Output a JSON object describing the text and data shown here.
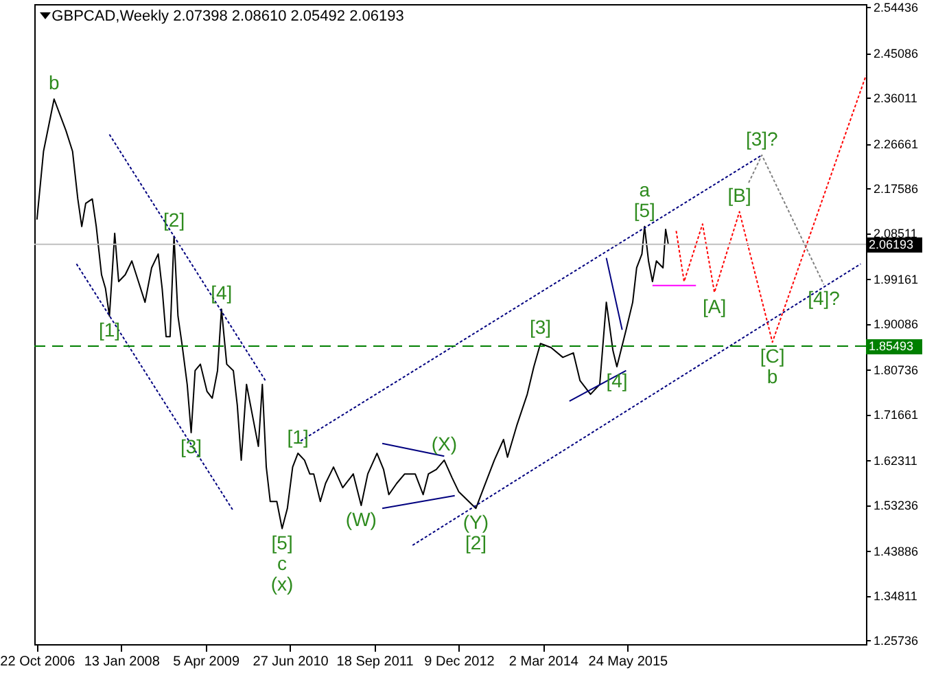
{
  "chart_data": {
    "type": "line",
    "title": "GBPCAD,Weekly  2.07398 2.08610 2.05492 2.06193",
    "xlim": [
      "2006-10-08",
      "2018-11-11"
    ],
    "xticks": [
      {
        "value": "2006-10-22",
        "label": "22 Oct 2006"
      },
      {
        "value": "2008-01-13",
        "label": "13 Jan 2008"
      },
      {
        "value": "2009-04-05",
        "label": "5 Apr 2009"
      },
      {
        "value": "2010-06-27",
        "label": "27 Jun 2010"
      },
      {
        "value": "2011-09-18",
        "label": "18 Sep 2011"
      },
      {
        "value": "2012-12-09",
        "label": "9 Dec 2012"
      },
      {
        "value": "2014-03-02",
        "label": "2 Mar 2014"
      },
      {
        "value": "2015-05-24",
        "label": "24 May 2015"
      }
    ],
    "ylim": [
      1.249,
      2.55
    ],
    "yticks": [
      {
        "value": 1.25736,
        "label": "1.25736"
      },
      {
        "value": 1.34811,
        "label": "1.34811"
      },
      {
        "value": 1.43886,
        "label": "1.43886"
      },
      {
        "value": 1.53236,
        "label": "1.53236"
      },
      {
        "value": 1.62311,
        "label": "1.62311"
      },
      {
        "value": 1.71661,
        "label": "1.71661"
      },
      {
        "value": 1.80736,
        "label": "1.80736"
      },
      {
        "value": 1.90086,
        "label": "1.90086"
      },
      {
        "value": 1.99161,
        "label": "1.99161"
      },
      {
        "value": 2.08511,
        "label": "2.08511"
      },
      {
        "value": 2.17586,
        "label": "2.17586"
      },
      {
        "value": 2.26661,
        "label": "2.26661"
      },
      {
        "value": 2.36011,
        "label": "2.36011"
      },
      {
        "value": 2.45086,
        "label": "2.45086"
      },
      {
        "value": 2.54436,
        "label": "2.54436"
      }
    ],
    "grid": false,
    "series": [
      {
        "color": "#000000",
        "x": [
          "2006-10-22",
          "2006-11-26",
          "2007-01-21",
          "2007-03-25",
          "2007-04-29",
          "2007-05-27",
          "2007-06-17",
          "2007-07-08",
          "2007-08-12",
          "2007-09-02",
          "2007-09-30",
          "2007-10-21",
          "2007-11-11",
          "2007-12-09",
          "2007-12-30",
          "2008-02-03",
          "2008-03-09",
          "2008-04-13",
          "2008-05-18",
          "2008-06-22",
          "2008-07-27",
          "2008-08-17",
          "2008-09-07",
          "2008-09-28",
          "2008-10-19",
          "2008-11-09",
          "2008-11-30",
          "2008-12-28",
          "2009-01-18",
          "2009-02-08",
          "2009-03-08",
          "2009-04-12",
          "2009-05-10",
          "2009-06-07",
          "2009-06-28",
          "2009-07-26",
          "2009-08-30",
          "2009-09-20",
          "2009-10-11",
          "2009-11-08",
          "2009-12-13",
          "2010-01-10",
          "2010-01-31",
          "2010-02-21",
          "2010-03-14",
          "2010-04-18",
          "2010-05-16",
          "2010-06-13",
          "2010-07-11",
          "2010-08-08",
          "2010-09-12",
          "2010-10-10",
          "2010-10-31",
          "2010-12-05",
          "2011-01-02",
          "2011-02-13",
          "2011-04-03",
          "2011-05-29",
          "2011-07-10",
          "2011-08-14",
          "2011-10-02",
          "2011-11-06",
          "2011-12-04",
          "2012-01-15",
          "2012-02-26",
          "2012-04-22",
          "2012-06-03",
          "2012-07-01",
          "2012-08-12",
          "2012-09-23",
          "2012-11-04",
          "2012-12-09",
          "2013-03-10",
          "2013-04-21",
          "2013-06-16",
          "2013-08-04",
          "2013-08-25",
          "2013-10-13",
          "2013-12-08",
          "2014-01-12",
          "2014-02-16",
          "2014-04-13",
          "2014-06-15",
          "2014-08-10",
          "2014-09-14",
          "2014-11-09",
          "2014-12-28",
          "2015-02-01",
          "2015-03-08",
          "2015-03-29",
          "2015-05-17",
          "2015-06-21",
          "2015-07-12",
          "2015-08-09",
          "2015-08-23",
          "2015-09-13",
          "2015-10-04",
          "2015-10-25",
          "2015-11-29",
          "2015-12-13",
          "2015-12-27"
        ],
        "values": [
          2.112,
          2.251,
          2.357,
          2.293,
          2.251,
          2.154,
          2.098,
          2.145,
          2.154,
          2.098,
          2.0,
          1.972,
          1.916,
          2.084,
          1.986,
          2.0,
          2.028,
          1.986,
          1.944,
          2.014,
          2.042,
          1.972,
          1.874,
          1.874,
          2.078,
          1.916,
          1.86,
          1.777,
          1.679,
          1.805,
          1.818,
          1.763,
          1.749,
          1.805,
          1.93,
          1.818,
          1.805,
          1.735,
          1.623,
          1.777,
          1.707,
          1.651,
          1.777,
          1.609,
          1.539,
          1.539,
          1.484,
          1.525,
          1.609,
          1.637,
          1.623,
          1.595,
          1.595,
          1.539,
          1.576,
          1.609,
          1.567,
          1.595,
          1.531,
          1.595,
          1.637,
          1.604,
          1.553,
          1.576,
          1.595,
          1.595,
          1.553,
          1.595,
          1.604,
          1.623,
          1.587,
          1.559,
          1.525,
          1.567,
          1.623,
          1.665,
          1.629,
          1.693,
          1.757,
          1.813,
          1.86,
          1.852,
          1.832,
          1.841,
          1.785,
          1.757,
          1.777,
          1.944,
          1.846,
          1.813,
          1.888,
          1.944,
          2.014,
          2.042,
          2.098,
          2.028,
          1.986,
          2.028,
          2.014,
          2.092,
          2.062
        ]
      },
      {
        "type": "line",
        "color": "#00007f",
        "line_style": "dotted",
        "x": [
          "2007-11-11",
          "2010-02-21"
        ],
        "values": [
          2.285,
          1.782
        ]
      },
      {
        "type": "line",
        "color": "#00007f",
        "line_style": "dotted",
        "x": [
          "2007-05-20",
          "2009-08-30"
        ],
        "values": [
          2.022,
          1.52
        ]
      },
      {
        "type": "line",
        "color": "#00007f",
        "line_style": "dotted",
        "x": [
          "2010-08-01",
          "2017-05-07"
        ],
        "values": [
          1.657,
          2.243
        ]
      },
      {
        "type": "line",
        "color": "#00007f",
        "line_style": "dotted",
        "x": [
          "2012-04-08",
          "2018-10-14"
        ],
        "values": [
          1.45,
          2.022
        ]
      },
      {
        "type": "line",
        "color": "#00007f",
        "line_style": "solid",
        "x": [
          "2011-10-30",
          "2012-09-23"
        ],
        "values": [
          1.657,
          1.631
        ]
      },
      {
        "type": "line",
        "color": "#00007f",
        "line_style": "solid",
        "x": [
          "2011-10-30",
          "2012-11-18"
        ],
        "values": [
          1.525,
          1.551
        ]
      },
      {
        "type": "line",
        "color": "#00007f",
        "line_style": "solid",
        "x": [
          "2014-07-20",
          "2015-05-17"
        ],
        "values": [
          1.743,
          1.805
        ]
      },
      {
        "type": "line",
        "color": "#00007f",
        "line_style": "solid",
        "x": [
          "2015-02-01",
          "2015-04-26"
        ],
        "values": [
          2.034,
          1.888
        ]
      },
      {
        "type": "line",
        "color": "#ff00ff",
        "line_style": "solid",
        "x": [
          "2015-10-04",
          "2016-05-22"
        ],
        "values": [
          1.978,
          1.978
        ]
      },
      {
        "type": "line",
        "color": "#ff0000",
        "line_style": "dotted",
        "x": [
          "2016-02-07",
          "2016-03-20",
          "2016-06-26",
          "2016-08-28",
          "2017-01-08",
          "2017-07-02",
          "2018-11-11"
        ],
        "values": [
          2.089,
          1.986,
          2.103,
          1.964,
          2.128,
          1.863,
          2.405
        ]
      },
      {
        "type": "line",
        "color": "#808080",
        "line_style": "dotted",
        "x": [
          "2017-02-26",
          "2017-05-07",
          "2018-04-01"
        ],
        "values": [
          2.187,
          2.243,
          1.98
        ]
      }
    ],
    "ref_lines": [
      {
        "axis": "y",
        "value": 2.06193,
        "label": "2.06193",
        "color": "#c0c0c0",
        "line_style": "solid"
      },
      {
        "axis": "y",
        "value": 1.85493,
        "label": "1.85493",
        "color": "#007f00",
        "line_style": "dashed"
      }
    ],
    "annotations": [
      {
        "text": "b",
        "x": "2007-01-21",
        "y": 2.357
      },
      {
        "text": "[1]",
        "x": "2007-11-11",
        "y": 1.916
      },
      {
        "text": "[2]",
        "x": "2008-10-19",
        "y": 2.078
      },
      {
        "text": "[3]",
        "x": "2009-01-18",
        "y": 1.679
      },
      {
        "text": "[4]",
        "x": "2009-06-28",
        "y": 1.93
      },
      {
        "text": "[5]",
        "x": "2010-05-16",
        "y": 1.484
      },
      {
        "text": "c",
        "x": "2010-05-16",
        "y": 1.484
      },
      {
        "text": "(x)",
        "x": "2010-05-16",
        "y": 1.484
      },
      {
        "text": "[1]",
        "x": "2010-08-08",
        "y": 1.637
      },
      {
        "text": "(W)",
        "x": "2011-07-10",
        "y": 1.531
      },
      {
        "text": "(X)",
        "x": "2012-09-23",
        "y": 1.623
      },
      {
        "text": "(Y)",
        "x": "2013-03-10",
        "y": 1.525
      },
      {
        "text": "[2]",
        "x": "2013-03-10",
        "y": 1.525
      },
      {
        "text": "[3]",
        "x": "2014-02-16",
        "y": 1.86
      },
      {
        "text": "[4]",
        "x": "2015-03-29",
        "y": 1.813
      },
      {
        "text": "[5]",
        "x": "2015-08-23",
        "y": 2.098
      },
      {
        "text": "a",
        "x": "2015-08-23",
        "y": 2.098
      },
      {
        "text": "[A]",
        "x": "2016-08-28",
        "y": 1.964
      },
      {
        "text": "[B]",
        "x": "2017-01-08",
        "y": 2.128
      },
      {
        "text": "[3]?",
        "x": "2017-05-07",
        "y": 2.243
      },
      {
        "text": "[C]",
        "x": "2017-07-02",
        "y": 1.863
      },
      {
        "text": "b",
        "x": "2017-07-02",
        "y": 1.863
      },
      {
        "text": "[4]?",
        "x": "2018-04-01",
        "y": 1.98
      }
    ]
  }
}
